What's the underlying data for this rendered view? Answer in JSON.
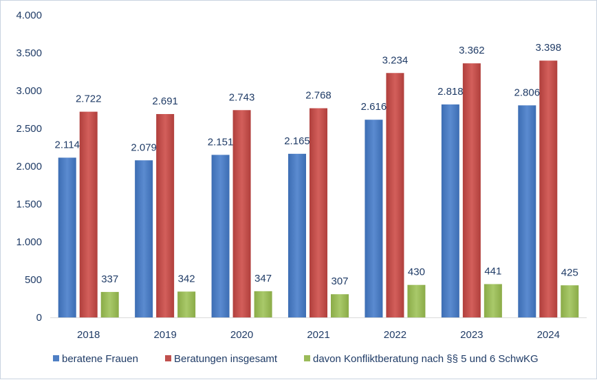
{
  "chart_data": {
    "type": "bar",
    "categories": [
      "2018",
      "2019",
      "2020",
      "2021",
      "2022",
      "2023",
      "2024"
    ],
    "series": [
      {
        "name": "beratene Frauen",
        "values": [
          2114,
          2079,
          2151,
          2165,
          2616,
          2818,
          2806
        ],
        "labels": [
          "2.114",
          "2.079",
          "2.151",
          "2.165",
          "2.616",
          "2.818",
          "2.806"
        ]
      },
      {
        "name": "Beratungen insgesamt",
        "values": [
          2722,
          2691,
          2743,
          2768,
          3234,
          3362,
          3398
        ],
        "labels": [
          "2.722",
          "2.691",
          "2.743",
          "2.768",
          "3.234",
          "3.362",
          "3.398"
        ]
      },
      {
        "name": "davon Konfliktberatung nach §§ 5 und 6 SchwKG",
        "values": [
          337,
          342,
          347,
          307,
          430,
          441,
          425
        ],
        "labels": [
          "337",
          "342",
          "347",
          "307",
          "430",
          "441",
          "425"
        ]
      }
    ],
    "y_ticks": [
      0,
      500,
      1000,
      1500,
      2000,
      2500,
      3000,
      3500,
      4000
    ],
    "y_tick_labels": [
      "0",
      "500",
      "1.000",
      "1.500",
      "2.000",
      "2.500",
      "3.000",
      "3.500",
      "4.000"
    ],
    "ylim": [
      0,
      4000
    ],
    "title": "",
    "xlabel": "",
    "ylabel": "",
    "grid": false,
    "legend_position": "bottom",
    "colors": [
      "#4f7fc4",
      "#c0504d",
      "#9bbb59"
    ]
  }
}
